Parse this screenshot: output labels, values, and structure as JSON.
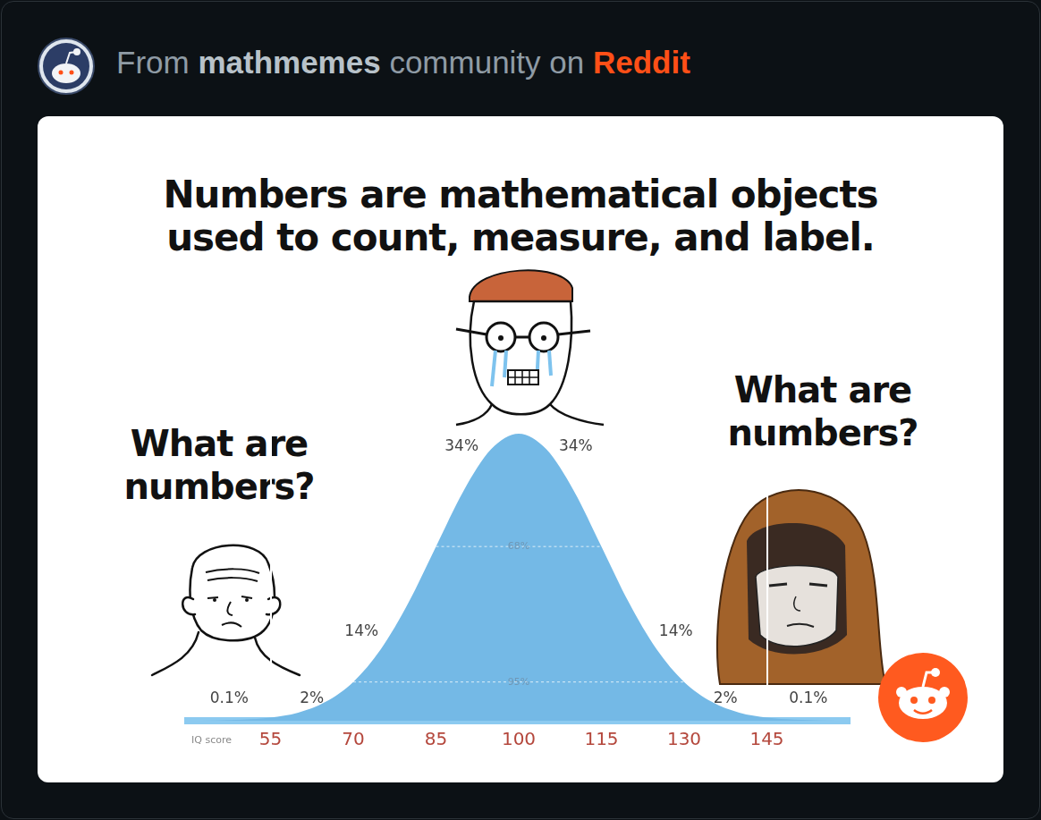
{
  "header": {
    "prefix": "From",
    "community": "mathmemes",
    "middle": "community on",
    "platform": "Reddit"
  },
  "captions": [
    "What are numbers?",
    "What are numbers?"
  ],
  "chart_data": {
    "type": "area",
    "title": "Numbers are mathematical objects used to count, measure, and label.",
    "x_label": "IQ score",
    "x": [
      40,
      45,
      50,
      55,
      60,
      65,
      70,
      75,
      80,
      85,
      90,
      95,
      100,
      105,
      110,
      115,
      120,
      125,
      130,
      135,
      140,
      145,
      150,
      155,
      160
    ],
    "values": [
      0,
      0.1,
      0.4,
      1.1,
      2.8,
      6.6,
      13.5,
      24.9,
      41.1,
      60.7,
      80.1,
      94.6,
      100,
      94.6,
      80.1,
      60.7,
      41.1,
      24.9,
      13.5,
      6.6,
      2.8,
      1.1,
      0.4,
      0.1,
      0
    ],
    "color": "#74b9e6",
    "xlim": [
      40,
      160
    ],
    "xticks": [
      55,
      70,
      85,
      100,
      115,
      130,
      145
    ],
    "ylim": [
      0,
      100
    ],
    "tick_labels": "x",
    "grid": true,
    "bands": [
      {
        "from": 40,
        "to": 55,
        "value": 0.1,
        "label": "0.1%"
      },
      {
        "from": 55,
        "to": 70,
        "value": 2,
        "label": "2%"
      },
      {
        "from": 70,
        "to": 85,
        "value": 14,
        "label": "14%"
      },
      {
        "from": 85,
        "to": 100,
        "value": 34,
        "label": "34%"
      },
      {
        "from": 100,
        "to": 115,
        "value": 34,
        "label": "34%"
      },
      {
        "from": 115,
        "to": 130,
        "value": 14,
        "label": "14%"
      },
      {
        "from": 130,
        "to": 145,
        "value": 2,
        "label": "2%"
      },
      {
        "from": 145,
        "to": 160,
        "value": 0.1,
        "label": "0.1%"
      }
    ],
    "inner_bands": [
      {
        "from": 85,
        "to": 115,
        "value": 68,
        "label": "68%"
      },
      {
        "from": 70,
        "to": 130,
        "value": 95,
        "label": "95%"
      }
    ]
  }
}
